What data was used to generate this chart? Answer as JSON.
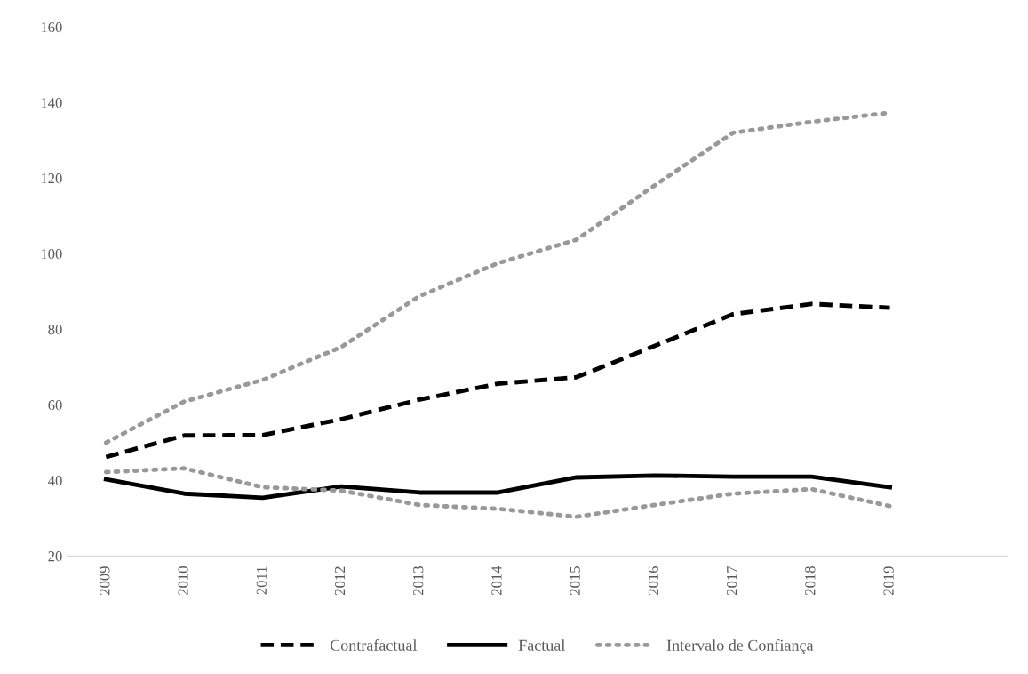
{
  "chart_data": {
    "type": "line",
    "categories": [
      "2009",
      "2010",
      "2011",
      "2012",
      "2013",
      "2014",
      "2015",
      "2016",
      "2017",
      "2018",
      "2019",
      null
    ],
    "ylim": [
      20,
      160
    ],
    "yticks": [
      20,
      40,
      60,
      80,
      100,
      120,
      140,
      160
    ],
    "grid": false,
    "legend": "bottom",
    "series": [
      {
        "name": "Contrafactual",
        "color": "#000000",
        "line_style": "dashed",
        "values": [
          46.2,
          51.9,
          52,
          56.2,
          61.4,
          65.6,
          67.3,
          75.6,
          84,
          86.7,
          85.7,
          null
        ]
      },
      {
        "name": "Factual",
        "color": "#000000",
        "line_style": "solid",
        "values": [
          40.3,
          36.5,
          35.4,
          38.4,
          36.8,
          36.8,
          40.8,
          41.3,
          41,
          41,
          38.2,
          null
        ]
      },
      {
        "name": "Intervalo de Confiança",
        "color": "#999999",
        "line_style": "dotted",
        "values": [
          50,
          60.9,
          66.6,
          75.3,
          88.8,
          97.5,
          103.7,
          118.1,
          132,
          134.9,
          137.3,
          null
        ]
      },
      {
        "color": "#999999",
        "line_style": "dotted",
        "values": [
          42.2,
          43.2,
          38.2,
          37.3,
          33.5,
          32.5,
          30.4,
          33.5,
          36.5,
          37.7,
          33.2,
          null
        ]
      }
    ]
  }
}
